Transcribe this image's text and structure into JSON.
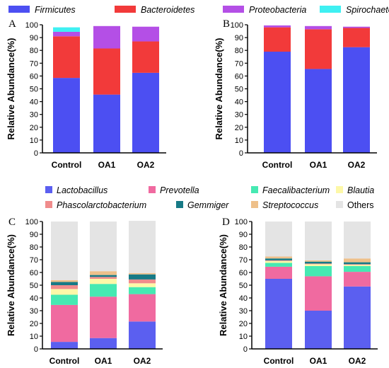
{
  "legend_top": [
    {
      "name": "Firmicutes",
      "color": "#4c4ff2"
    },
    {
      "name": "Bacteroidetes",
      "color": "#f23a3a"
    },
    {
      "name": "Proteobacteria",
      "color": "#b44fe6"
    },
    {
      "name": "Spirochaetes",
      "color": "#3ff0f2"
    }
  ],
  "legend_bottom": [
    {
      "name": "Lactobacillus",
      "color": "#5b5ff0"
    },
    {
      "name": "Prevotella",
      "color": "#f06aa0"
    },
    {
      "name": "Faecalibacterium",
      "color": "#46e9b2"
    },
    {
      "name": "Blautia",
      "color": "#fdf8a8"
    },
    {
      "name": "Phascolarctobacterium",
      "color": "#f08c8c"
    },
    {
      "name": "Gemmiger",
      "color": "#177a86"
    },
    {
      "name": "Streptococcus",
      "color": "#eec08a"
    },
    {
      "name": "Others",
      "color": "#e4e4e4"
    }
  ],
  "chart_data": [
    {
      "panel": "A",
      "type": "bar",
      "stacked": true,
      "categories": [
        "Control",
        "OA1",
        "OA2"
      ],
      "ylabel": "Relative Abundance(%)",
      "ylim": [
        0,
        100
      ],
      "yticks": [
        0,
        10,
        20,
        30,
        40,
        50,
        60,
        70,
        80,
        90,
        100
      ],
      "series": [
        {
          "name": "Firmicutes",
          "values": [
            58.5,
            45.5,
            62.5
          ]
        },
        {
          "name": "Bacteroidetes",
          "values": [
            32.5,
            36,
            24.5
          ]
        },
        {
          "name": "Proteobacteria",
          "values": [
            3.5,
            17.5,
            11.5
          ]
        },
        {
          "name": "Spirochaetes",
          "values": [
            3.5,
            0,
            0
          ]
        }
      ]
    },
    {
      "panel": "B",
      "type": "bar",
      "stacked": true,
      "categories": [
        "Control",
        "OA1",
        "OA2"
      ],
      "ylabel": "Relative Abundance(%)",
      "ylim": [
        0,
        100
      ],
      "yticks": [
        0,
        10,
        20,
        30,
        40,
        50,
        60,
        70,
        80,
        90,
        100
      ],
      "series": [
        {
          "name": "Firmicutes",
          "values": [
            79,
            65.5,
            82.5
          ]
        },
        {
          "name": "Bacteroidetes",
          "values": [
            19,
            31,
            15
          ]
        },
        {
          "name": "Proteobacteria",
          "values": [
            1.5,
            2.5,
            1
          ]
        },
        {
          "name": "Spirochaetes",
          "values": [
            0,
            0,
            0
          ]
        }
      ]
    },
    {
      "panel": "C",
      "type": "bar",
      "stacked": true,
      "categories": [
        "Control",
        "OA1",
        "OA2"
      ],
      "ylabel": "Relative Abundance(%)",
      "ylim": [
        0,
        100
      ],
      "yticks": [
        0,
        10,
        20,
        30,
        40,
        50,
        60,
        70,
        80,
        90,
        100
      ],
      "series": [
        {
          "name": "Lactobacillus",
          "values": [
            5.5,
            8.5,
            21.5
          ]
        },
        {
          "name": "Prevotella",
          "values": [
            29,
            32.5,
            21.5
          ]
        },
        {
          "name": "Faecalibacterium",
          "values": [
            8,
            10,
            5.5
          ]
        },
        {
          "name": "Blautia",
          "values": [
            4.5,
            4,
            3
          ]
        },
        {
          "name": "Phascolarctobacterium",
          "values": [
            3,
            1.5,
            3
          ]
        },
        {
          "name": "Gemmiger",
          "values": [
            2.5,
            1.5,
            4
          ]
        },
        {
          "name": "Streptococcus",
          "values": [
            1.5,
            3,
            1
          ]
        },
        {
          "name": "Others",
          "values": [
            46,
            39,
            41
          ]
        }
      ]
    },
    {
      "panel": "D",
      "type": "bar",
      "stacked": true,
      "categories": [
        "Control",
        "OA1",
        "OA2"
      ],
      "ylabel": "Relative Abundance(%)",
      "ylim": [
        0,
        100
      ],
      "yticks": [
        0,
        10,
        20,
        30,
        40,
        50,
        60,
        70,
        80,
        90,
        100
      ],
      "series": [
        {
          "name": "Lactobacillus",
          "values": [
            55,
            30,
            49
          ]
        },
        {
          "name": "Prevotella",
          "values": [
            9.5,
            27,
            11.5
          ]
        },
        {
          "name": "Faecalibacterium",
          "values": [
            3,
            8,
            4.5
          ]
        },
        {
          "name": "Blautia",
          "values": [
            1.5,
            1.5,
            1
          ]
        },
        {
          "name": "Phascolarctobacterium",
          "values": [
            0.5,
            0.5,
            0.5
          ]
        },
        {
          "name": "Gemmiger",
          "values": [
            1.5,
            1.5,
            1.5
          ]
        },
        {
          "name": "Streptococcus",
          "values": [
            1.5,
            1,
            3
          ]
        },
        {
          "name": "Others",
          "values": [
            27.5,
            30.5,
            29
          ]
        }
      ]
    }
  ]
}
